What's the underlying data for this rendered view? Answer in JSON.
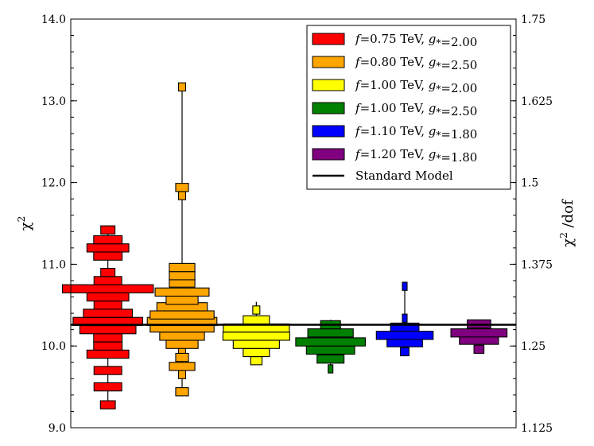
{
  "chart_data": {
    "type": "violin-histogram",
    "title": "",
    "ylabel_left": "χ",
    "ylabel_left_sup": "2",
    "ylabel_right": "χ",
    "ylabel_right_sup": "2",
    "ylabel_right_suffix": " /dof",
    "ylim": [
      9.0,
      14.0
    ],
    "ylim_right": [
      1.125,
      1.75
    ],
    "yticks_left": [
      "9.0",
      "10.0",
      "11.0",
      "12.0",
      "13.0",
      "14.0"
    ],
    "yticks_left_values": [
      9.0,
      10.0,
      11.0,
      12.0,
      13.0,
      14.0
    ],
    "yticks_right": [
      "1.125",
      "1.25",
      "1.375",
      "1.5",
      "1.625",
      "1.75"
    ],
    "yticks_right_values": [
      1.125,
      1.25,
      1.375,
      1.5,
      1.625,
      1.75
    ],
    "standard_model": {
      "label": "Standard Model",
      "chi2": 10.26,
      "color": "#000000"
    },
    "legend_position": "top-right",
    "series": [
      {
        "label": "f=0.75 TeV, g*=2.00",
        "f": "0.75",
        "g": "2.00",
        "color": "#ff0000",
        "line_range": [
          9.28,
          11.42
        ],
        "bins": [
          [
            9.28,
            0.21
          ],
          [
            9.5,
            0.39
          ],
          [
            9.7,
            0.39
          ],
          [
            9.9,
            0.59
          ],
          [
            10.0,
            0.4
          ],
          [
            10.1,
            0.4
          ],
          [
            10.2,
            0.79
          ],
          [
            10.3,
            0.98
          ],
          [
            10.4,
            0.69
          ],
          [
            10.5,
            0.39
          ],
          [
            10.6,
            0.59
          ],
          [
            10.7,
            1.28
          ],
          [
            10.8,
            0.39
          ],
          [
            10.9,
            0.2
          ],
          [
            11.1,
            0.4
          ],
          [
            11.2,
            0.59
          ],
          [
            11.3,
            0.4
          ],
          [
            11.42,
            0.2
          ]
        ]
      },
      {
        "label": "f=0.80 TeV, g*=2.50",
        "f": "0.80",
        "g": "2.50",
        "color": "#ffa500",
        "line_range": [
          9.44,
          13.17
        ],
        "bins": [
          [
            9.44,
            0.18
          ],
          [
            9.65,
            0.1
          ],
          [
            9.75,
            0.36
          ],
          [
            9.86,
            0.18
          ],
          [
            9.96,
            0.1
          ],
          [
            10.02,
            0.45
          ],
          [
            10.12,
            0.63
          ],
          [
            10.22,
            0.9
          ],
          [
            10.3,
            0.98
          ],
          [
            10.38,
            0.9
          ],
          [
            10.48,
            0.71
          ],
          [
            10.56,
            0.45
          ],
          [
            10.66,
            0.76
          ],
          [
            10.77,
            0.36
          ],
          [
            10.86,
            0.36
          ],
          [
            10.96,
            0.36
          ],
          [
            11.84,
            0.1
          ],
          [
            11.94,
            0.18
          ],
          [
            13.17,
            0.1
          ]
        ]
      },
      {
        "label": "f=1.00 TeV, g*=2.00",
        "f": "1.00",
        "g": "2.00",
        "color": "#ffff00",
        "line_range": [
          9.8,
          10.54
        ],
        "bins": [
          [
            9.82,
            0.16
          ],
          [
            9.92,
            0.37
          ],
          [
            10.02,
            0.65
          ],
          [
            10.12,
            0.94
          ],
          [
            10.22,
            0.93
          ],
          [
            10.32,
            0.37
          ],
          [
            10.44,
            0.1
          ]
        ]
      },
      {
        "label": "f=1.00 TeV, g*=2.50",
        "f": "1.00",
        "g": "2.50",
        "color": "#008000",
        "line_range": [
          9.7,
          10.32
        ],
        "bins": [
          [
            9.72,
            0.06
          ],
          [
            9.84,
            0.38
          ],
          [
            9.95,
            0.68
          ],
          [
            10.05,
            0.98
          ],
          [
            10.16,
            0.64
          ],
          [
            10.26,
            0.28
          ]
        ]
      },
      {
        "label": "f=1.10 TeV, g*=1.80",
        "f": "1.10",
        "g": "1.80",
        "color": "#0000ff",
        "line_range": [
          9.9,
          10.77
        ],
        "bins": [
          [
            9.93,
            0.12
          ],
          [
            10.04,
            0.5
          ],
          [
            10.13,
            0.8
          ],
          [
            10.23,
            0.4
          ],
          [
            10.34,
            0.06
          ],
          [
            10.73,
            0.04
          ]
        ]
      },
      {
        "label": "f=1.20 TeV, g*=1.80",
        "f": "1.20",
        "g": "1.80",
        "color": "#800080",
        "line_range": [
          9.92,
          10.32
        ],
        "bins": [
          [
            9.96,
            0.14
          ],
          [
            10.07,
            0.55
          ],
          [
            10.16,
            0.79
          ],
          [
            10.27,
            0.33
          ]
        ]
      }
    ]
  }
}
